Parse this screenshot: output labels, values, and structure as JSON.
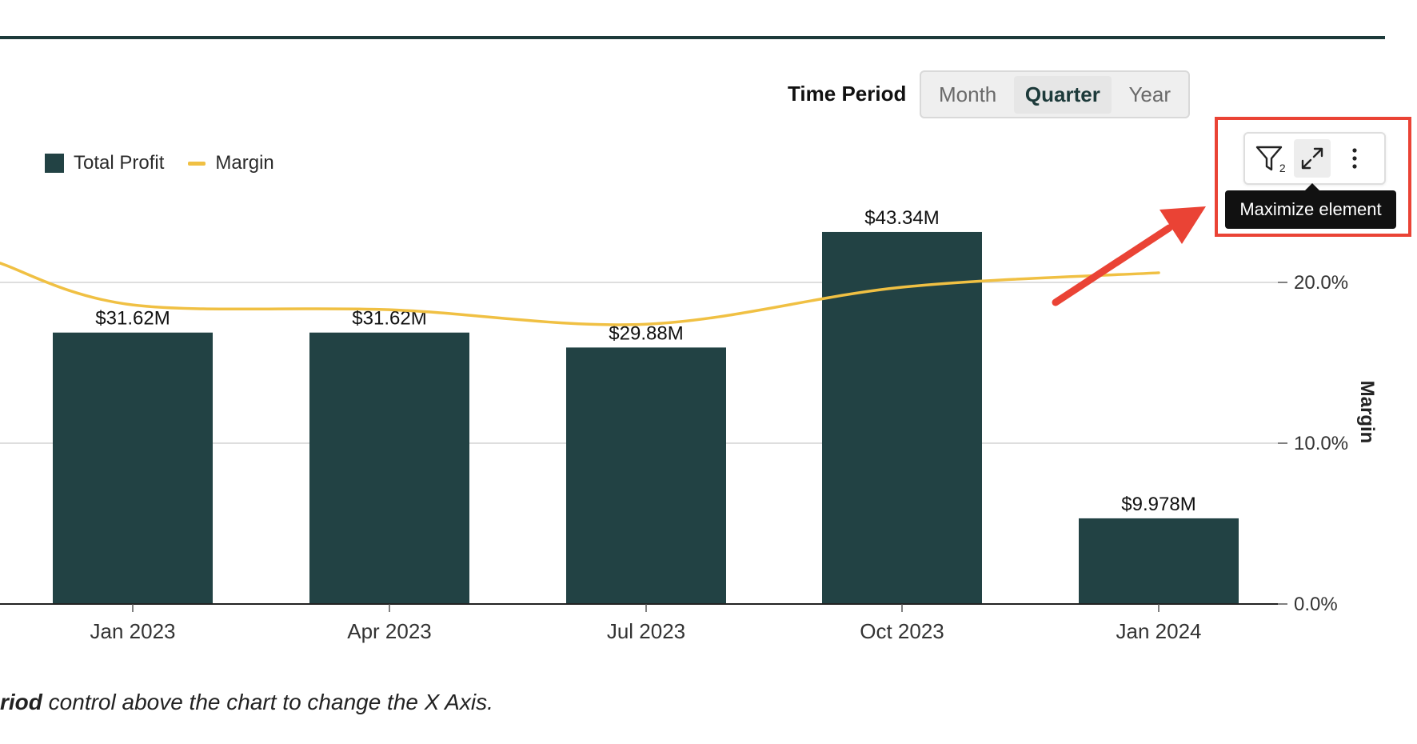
{
  "controls": {
    "time_period_label": "Time Period",
    "options": [
      "Month",
      "Quarter",
      "Year"
    ],
    "selected": "Quarter"
  },
  "toolbar": {
    "filter_count": "2",
    "tooltip": "Maximize element"
  },
  "footnote": {
    "bold_fragment": "riod",
    "rest": " control above the chart to change the X Axis."
  },
  "colors": {
    "bar": "#224244",
    "line": "#f0c043",
    "annotation": "#ea4335"
  },
  "chart_data": {
    "type": "bar",
    "categories": [
      "Jan 2023",
      "Apr 2023",
      "Jul 2023",
      "Oct 2023",
      "Jan 2024"
    ],
    "series": [
      {
        "name": "Total Profit",
        "type": "bar",
        "values": [
          31.62,
          31.62,
          29.88,
          43.34,
          9.978
        ],
        "labels": [
          "$31.62M",
          "$31.62M",
          "$29.88M",
          "$43.34M",
          "$9.978M"
        ]
      },
      {
        "name": "Margin",
        "type": "line",
        "axis": "right",
        "values": [
          18.6,
          18.3,
          17.4,
          19.7,
          20.6
        ]
      }
    ],
    "y2label": "Margin",
    "y2ticks": [
      "0.0%",
      "10.0%",
      "20.0%"
    ],
    "y2lim": [
      0,
      20
    ],
    "legend": "top-left",
    "grid": true
  }
}
